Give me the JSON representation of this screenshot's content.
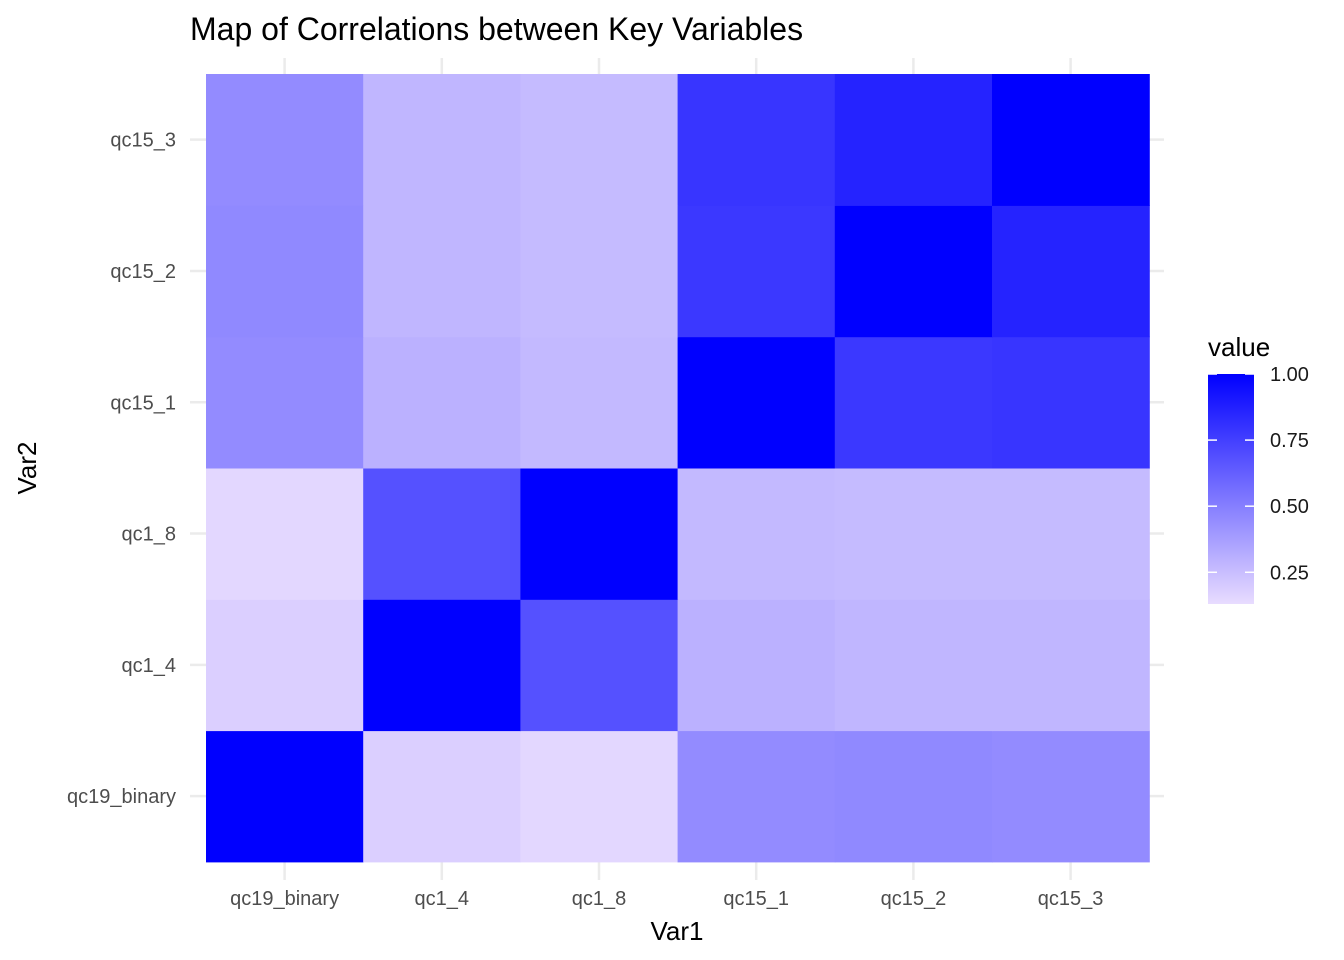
{
  "chart_data": {
    "type": "heatmap",
    "title": "Map of Correlations between Key Variables",
    "xlabel": "Var1",
    "ylabel": "Var2",
    "x_categories": [
      "qc19_binary",
      "qc1_4",
      "qc1_8",
      "qc15_1",
      "qc15_2",
      "qc15_3"
    ],
    "y_categories": [
      "qc19_binary",
      "qc1_4",
      "qc1_8",
      "qc15_1",
      "qc15_2",
      "qc15_3"
    ],
    "values": [
      [
        1.0,
        0.18,
        0.15,
        0.45,
        0.46,
        0.45
      ],
      [
        0.18,
        1.0,
        0.68,
        0.3,
        0.28,
        0.28
      ],
      [
        0.15,
        0.68,
        1.0,
        0.27,
        0.26,
        0.26
      ],
      [
        0.45,
        0.3,
        0.27,
        1.0,
        0.78,
        0.79
      ],
      [
        0.46,
        0.28,
        0.26,
        0.78,
        1.0,
        0.86
      ],
      [
        0.45,
        0.28,
        0.26,
        0.79,
        0.86,
        1.0
      ]
    ],
    "legend": {
      "title": "value",
      "ticks": [
        0.25,
        0.5,
        0.75,
        1.0
      ],
      "tick_labels": [
        "0.25",
        "0.50",
        "0.75",
        "1.00"
      ],
      "range": [
        0.13,
        1.0
      ],
      "low_color": "#e8dcff",
      "high_color": "#0000ff",
      "placement": "right"
    },
    "grid": true
  }
}
